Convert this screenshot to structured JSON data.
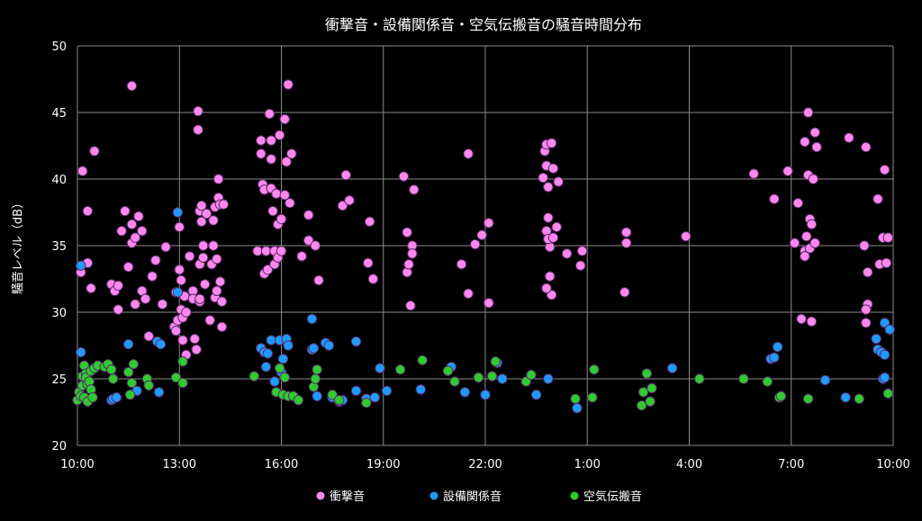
{
  "chart_data": {
    "type": "scatter",
    "title": "衝撃音・設備関係音・空気伝搬音の騒音時間分布",
    "xlabel": "",
    "ylabel": "騒音レベル（dB）",
    "ylim": [
      20,
      50
    ],
    "yticks": [
      "20",
      "25",
      "30",
      "35",
      "40",
      "45",
      "50"
    ],
    "xlim": [
      0,
      24
    ],
    "xticks": [
      {
        "value": 0,
        "label": "10:00"
      },
      {
        "value": 3,
        "label": "13:00"
      },
      {
        "value": 6,
        "label": "16:00"
      },
      {
        "value": 9,
        "label": "19:00"
      },
      {
        "value": 12,
        "label": "22:00"
      },
      {
        "value": 15,
        "label": "1:00"
      },
      {
        "value": 18,
        "label": "4:00"
      },
      {
        "value": 21,
        "label": "7:00"
      },
      {
        "value": 24,
        "label": "10:00"
      }
    ],
    "x_unit": "hours after 10:00",
    "grid": true,
    "legend": "bottom",
    "series": [
      {
        "name": "衝撃音",
        "color": "#ff88ee",
        "points": [
          [
            0.1,
            33.0
          ],
          [
            0.15,
            40.6
          ],
          [
            0.3,
            37.6
          ],
          [
            0.3,
            33.7
          ],
          [
            0.4,
            31.8
          ],
          [
            0.5,
            42.1
          ],
          [
            1.0,
            32.1
          ],
          [
            1.1,
            31.6
          ],
          [
            1.2,
            30.2
          ],
          [
            1.2,
            32.0
          ],
          [
            1.3,
            36.1
          ],
          [
            1.4,
            37.6
          ],
          [
            1.5,
            33.4
          ],
          [
            1.6,
            35.2
          ],
          [
            1.6,
            36.6
          ],
          [
            1.7,
            35.6
          ],
          [
            1.7,
            30.6
          ],
          [
            1.6,
            47.0
          ],
          [
            1.8,
            37.2
          ],
          [
            1.9,
            36.1
          ],
          [
            1.9,
            31.6
          ],
          [
            2.0,
            31.0
          ],
          [
            2.1,
            28.2
          ],
          [
            2.2,
            32.7
          ],
          [
            2.3,
            33.9
          ],
          [
            2.5,
            30.6
          ],
          [
            2.6,
            34.9
          ],
          [
            2.85,
            28.9
          ],
          [
            2.9,
            31.5
          ],
          [
            2.9,
            28.6
          ],
          [
            2.95,
            29.4
          ],
          [
            3.0,
            36.4
          ],
          [
            3.0,
            33.2
          ],
          [
            3.05,
            32.4
          ],
          [
            3.05,
            30.2
          ],
          [
            3.1,
            29.6
          ],
          [
            3.1,
            27.9
          ],
          [
            3.15,
            31.2
          ],
          [
            3.2,
            30.0
          ],
          [
            3.2,
            26.8
          ],
          [
            3.3,
            34.2
          ],
          [
            3.4,
            31.6
          ],
          [
            3.4,
            31.0
          ],
          [
            3.45,
            28.0
          ],
          [
            3.5,
            27.2
          ],
          [
            3.6,
            30.8
          ],
          [
            3.6,
            33.6
          ],
          [
            3.6,
            31.0
          ],
          [
            3.55,
            45.1
          ],
          [
            3.55,
            43.7
          ],
          [
            3.6,
            37.6
          ],
          [
            3.65,
            38.0
          ],
          [
            3.65,
            36.8
          ],
          [
            3.7,
            35.0
          ],
          [
            3.7,
            34.1
          ],
          [
            3.75,
            32.1
          ],
          [
            3.8,
            37.4
          ],
          [
            3.9,
            29.4
          ],
          [
            3.95,
            33.6
          ],
          [
            4.0,
            35.0
          ],
          [
            4.0,
            36.9
          ],
          [
            4.05,
            37.9
          ],
          [
            4.05,
            31.1
          ],
          [
            4.1,
            31.6
          ],
          [
            4.1,
            34.0
          ],
          [
            4.15,
            38.6
          ],
          [
            4.15,
            40.0
          ],
          [
            4.2,
            38.1
          ],
          [
            4.2,
            32.3
          ],
          [
            4.25,
            30.8
          ],
          [
            4.25,
            28.9
          ],
          [
            4.3,
            38.1
          ],
          [
            5.3,
            34.6
          ],
          [
            5.4,
            42.9
          ],
          [
            5.4,
            41.9
          ],
          [
            5.45,
            39.6
          ],
          [
            5.5,
            39.2
          ],
          [
            5.5,
            32.9
          ],
          [
            5.55,
            34.6
          ],
          [
            5.6,
            33.2
          ],
          [
            5.65,
            44.9
          ],
          [
            5.7,
            39.3
          ],
          [
            5.7,
            42.9
          ],
          [
            5.7,
            41.5
          ],
          [
            5.75,
            37.6
          ],
          [
            5.8,
            34.6
          ],
          [
            5.8,
            33.6
          ],
          [
            5.85,
            38.9
          ],
          [
            5.9,
            34.1
          ],
          [
            5.9,
            36.6
          ],
          [
            5.95,
            43.3
          ],
          [
            6.0,
            34.6
          ],
          [
            6.0,
            37.0
          ],
          [
            6.1,
            44.5
          ],
          [
            6.1,
            38.8
          ],
          [
            6.15,
            41.3
          ],
          [
            6.2,
            47.1
          ],
          [
            6.25,
            38.2
          ],
          [
            6.3,
            41.9
          ],
          [
            6.6,
            34.2
          ],
          [
            6.8,
            37.3
          ],
          [
            6.8,
            35.4
          ],
          [
            7.0,
            35.0
          ],
          [
            7.1,
            32.4
          ],
          [
            7.8,
            38.0
          ],
          [
            7.9,
            40.3
          ],
          [
            8.0,
            38.4
          ],
          [
            8.6,
            36.8
          ],
          [
            8.55,
            33.7
          ],
          [
            8.7,
            32.5
          ],
          [
            9.6,
            40.2
          ],
          [
            9.7,
            36.0
          ],
          [
            9.7,
            33.0
          ],
          [
            9.75,
            33.6
          ],
          [
            9.8,
            30.5
          ],
          [
            9.85,
            35.0
          ],
          [
            9.85,
            34.4
          ],
          [
            9.9,
            39.2
          ],
          [
            11.5,
            41.9
          ],
          [
            11.3,
            33.6
          ],
          [
            11.5,
            31.4
          ],
          [
            11.7,
            35.1
          ],
          [
            11.9,
            35.8
          ],
          [
            12.1,
            36.7
          ],
          [
            12.1,
            30.7
          ],
          [
            13.7,
            40.1
          ],
          [
            13.75,
            42.1
          ],
          [
            13.8,
            42.6
          ],
          [
            13.8,
            41.0
          ],
          [
            13.85,
            37.1
          ],
          [
            13.85,
            39.4
          ],
          [
            13.9,
            34.9
          ],
          [
            13.9,
            32.7
          ],
          [
            13.8,
            36.1
          ],
          [
            13.85,
            35.5
          ],
          [
            13.95,
            42.7
          ],
          [
            14.0,
            40.8
          ],
          [
            14.0,
            35.6
          ],
          [
            13.95,
            31.3
          ],
          [
            13.8,
            31.8
          ],
          [
            14.1,
            36.4
          ],
          [
            14.15,
            39.8
          ],
          [
            14.4,
            34.4
          ],
          [
            14.8,
            33.5
          ],
          [
            14.85,
            34.6
          ],
          [
            16.15,
            36.0
          ],
          [
            16.15,
            35.2
          ],
          [
            16.1,
            31.5
          ],
          [
            17.9,
            35.7
          ],
          [
            19.9,
            40.4
          ],
          [
            20.5,
            38.5
          ],
          [
            20.9,
            40.6
          ],
          [
            21.1,
            35.2
          ],
          [
            21.2,
            38.2
          ],
          [
            21.4,
            42.8
          ],
          [
            21.45,
            35.7
          ],
          [
            21.4,
            34.6
          ],
          [
            21.4,
            34.2
          ],
          [
            21.5,
            45.0
          ],
          [
            21.5,
            40.3
          ],
          [
            21.55,
            37.0
          ],
          [
            21.55,
            34.8
          ],
          [
            21.6,
            29.3
          ],
          [
            21.6,
            36.6
          ],
          [
            21.65,
            40.0
          ],
          [
            21.7,
            43.5
          ],
          [
            21.7,
            35.2
          ],
          [
            21.75,
            42.4
          ],
          [
            21.3,
            29.5
          ],
          [
            22.7,
            43.1
          ],
          [
            23.15,
            35.0
          ],
          [
            23.2,
            42.4
          ],
          [
            23.25,
            33.0
          ],
          [
            23.25,
            30.6
          ],
          [
            23.2,
            30.2
          ],
          [
            23.2,
            29.2
          ],
          [
            23.55,
            38.5
          ],
          [
            23.6,
            33.6
          ],
          [
            23.7,
            35.6
          ],
          [
            23.75,
            40.7
          ],
          [
            23.8,
            33.7
          ],
          [
            23.85,
            35.6
          ]
        ]
      },
      {
        "name": "設備関係音",
        "color": "#1e9bff",
        "points": [
          [
            0.1,
            27.0
          ],
          [
            0.1,
            33.5
          ],
          [
            1.0,
            23.4
          ],
          [
            1.05,
            23.5
          ],
          [
            1.15,
            23.6
          ],
          [
            1.5,
            27.6
          ],
          [
            1.75,
            24.1
          ],
          [
            2.35,
            27.8
          ],
          [
            2.4,
            24.0
          ],
          [
            2.45,
            27.6
          ],
          [
            2.95,
            37.5
          ],
          [
            2.95,
            31.5
          ],
          [
            5.4,
            27.3
          ],
          [
            5.5,
            27.0
          ],
          [
            5.55,
            25.9
          ],
          [
            5.6,
            26.9
          ],
          [
            5.7,
            27.9
          ],
          [
            5.8,
            24.8
          ],
          [
            5.95,
            27.9
          ],
          [
            6.0,
            25.5
          ],
          [
            6.05,
            26.5
          ],
          [
            6.15,
            28.0
          ],
          [
            6.2,
            27.5
          ],
          [
            6.9,
            29.5
          ],
          [
            6.9,
            27.2
          ],
          [
            6.95,
            27.3
          ],
          [
            7.3,
            27.7
          ],
          [
            7.4,
            27.5
          ],
          [
            7.05,
            23.7
          ],
          [
            7.5,
            23.6
          ],
          [
            7.7,
            23.3
          ],
          [
            7.8,
            23.4
          ],
          [
            8.2,
            24.1
          ],
          [
            8.2,
            27.8
          ],
          [
            8.5,
            23.5
          ],
          [
            8.75,
            23.6
          ],
          [
            8.9,
            25.8
          ],
          [
            9.1,
            24.1
          ],
          [
            10.1,
            24.2
          ],
          [
            11.0,
            25.9
          ],
          [
            11.4,
            24.0
          ],
          [
            12.0,
            23.8
          ],
          [
            12.35,
            26.2
          ],
          [
            12.5,
            25.0
          ],
          [
            13.5,
            23.8
          ],
          [
            13.85,
            25.0
          ],
          [
            14.7,
            22.8
          ],
          [
            17.5,
            25.8
          ],
          [
            22.0,
            24.9
          ],
          [
            22.6,
            23.6
          ],
          [
            20.4,
            26.5
          ],
          [
            20.5,
            26.6
          ],
          [
            20.6,
            27.4
          ],
          [
            23.5,
            28.0
          ],
          [
            23.55,
            27.2
          ],
          [
            23.65,
            27.0
          ],
          [
            23.7,
            25.0
          ],
          [
            23.75,
            26.8
          ],
          [
            23.75,
            29.2
          ],
          [
            23.9,
            28.7
          ],
          [
            23.75,
            25.1
          ]
        ]
      },
      {
        "name": "空気伝搬音",
        "color": "#2ecc2e",
        "points": [
          [
            0.0,
            23.4
          ],
          [
            0.05,
            24.0
          ],
          [
            0.1,
            23.7
          ],
          [
            0.15,
            24.5
          ],
          [
            0.15,
            25.2
          ],
          [
            0.2,
            26.0
          ],
          [
            0.2,
            23.6
          ],
          [
            0.25,
            25.4
          ],
          [
            0.25,
            25.1
          ],
          [
            0.3,
            24.6
          ],
          [
            0.3,
            23.3
          ],
          [
            0.35,
            24.8
          ],
          [
            0.4,
            24.2
          ],
          [
            0.4,
            25.6
          ],
          [
            0.45,
            23.6
          ],
          [
            0.5,
            25.8
          ],
          [
            0.6,
            26.0
          ],
          [
            0.8,
            25.9
          ],
          [
            0.9,
            26.1
          ],
          [
            1.0,
            25.7
          ],
          [
            1.05,
            25.0
          ],
          [
            1.5,
            25.5
          ],
          [
            1.55,
            23.8
          ],
          [
            1.6,
            24.7
          ],
          [
            1.65,
            26.1
          ],
          [
            2.05,
            25.0
          ],
          [
            2.1,
            24.5
          ],
          [
            2.9,
            25.1
          ],
          [
            3.1,
            24.7
          ],
          [
            3.1,
            26.3
          ],
          [
            5.2,
            25.2
          ],
          [
            5.85,
            24.0
          ],
          [
            5.95,
            25.8
          ],
          [
            6.05,
            23.8
          ],
          [
            6.1,
            25.1
          ],
          [
            6.2,
            23.7
          ],
          [
            6.35,
            23.7
          ],
          [
            6.5,
            23.4
          ],
          [
            6.95,
            24.4
          ],
          [
            7.0,
            25.0
          ],
          [
            7.05,
            25.7
          ],
          [
            7.5,
            23.8
          ],
          [
            7.7,
            23.4
          ],
          [
            8.5,
            23.2
          ],
          [
            9.5,
            25.7
          ],
          [
            10.15,
            26.4
          ],
          [
            10.9,
            25.6
          ],
          [
            11.1,
            24.8
          ],
          [
            11.8,
            25.1
          ],
          [
            12.3,
            26.3
          ],
          [
            12.2,
            25.2
          ],
          [
            13.2,
            24.8
          ],
          [
            13.35,
            25.3
          ],
          [
            14.65,
            23.5
          ],
          [
            15.15,
            23.6
          ],
          [
            15.2,
            25.7
          ],
          [
            16.6,
            23.0
          ],
          [
            16.65,
            24.0
          ],
          [
            16.75,
            25.4
          ],
          [
            16.85,
            23.3
          ],
          [
            16.9,
            24.3
          ],
          [
            18.3,
            25.0
          ],
          [
            19.6,
            25.0
          ],
          [
            20.3,
            24.8
          ],
          [
            20.65,
            23.6
          ],
          [
            20.7,
            23.7
          ],
          [
            21.5,
            23.5
          ],
          [
            23.0,
            23.5
          ],
          [
            23.85,
            23.9
          ]
        ]
      }
    ]
  }
}
